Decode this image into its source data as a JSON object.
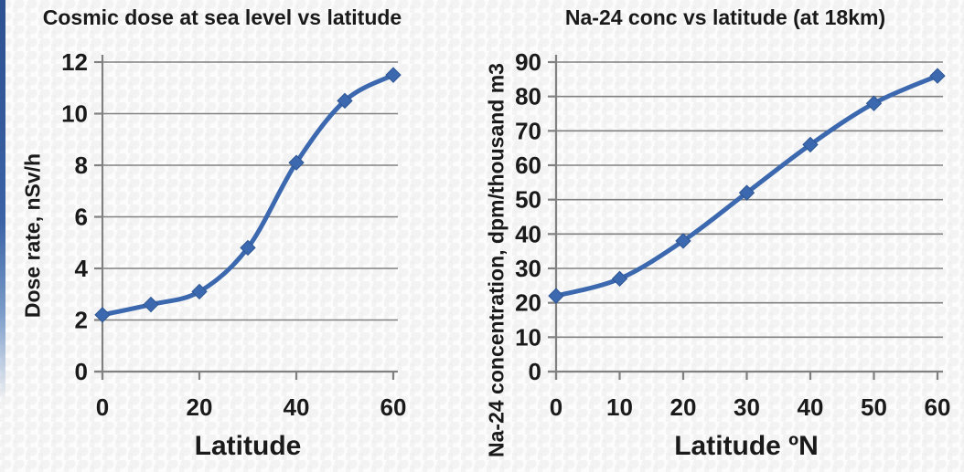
{
  "page": {
    "accent_strip_color": "#2d5191",
    "text_color": "#1a1a1a",
    "grid_color": "#808080",
    "line_color": "#3b68ae",
    "marker_edge_color": "#2f5795"
  },
  "chart_data": [
    {
      "type": "line",
      "title": "Cosmic dose at sea level vs latitude",
      "xlabel": "Latitude",
      "ylabel": "Dose rate, nSv/h",
      "x": [
        0,
        10,
        20,
        30,
        40,
        50,
        60
      ],
      "series": [
        {
          "name": "Dose rate",
          "values": [
            2.2,
            2.6,
            3.1,
            4.8,
            8.1,
            10.5,
            11.5
          ]
        }
      ],
      "xlim": [
        0,
        60
      ],
      "ylim": [
        0,
        12
      ],
      "xticks": [
        0,
        20,
        40,
        60
      ],
      "yticks": [
        0,
        2,
        4,
        6,
        8,
        10,
        12
      ],
      "grid": "horizontal",
      "legend": "none",
      "marker": "diamond",
      "line_color": "#3b68ae"
    },
    {
      "type": "line",
      "title": "Na-24 conc vs latitude (at 18km)",
      "xlabel": "Latitude ºN",
      "ylabel": "Na-24 concentration, dpm/thousand m3",
      "x": [
        0,
        10,
        20,
        30,
        40,
        50,
        60
      ],
      "series": [
        {
          "name": "Na-24 concentration",
          "values": [
            22,
            27,
            38,
            52,
            66,
            78,
            86
          ]
        }
      ],
      "xlim": [
        0,
        60
      ],
      "ylim": [
        0,
        90
      ],
      "xticks": [
        0,
        10,
        20,
        30,
        40,
        50,
        60
      ],
      "yticks": [
        0,
        10,
        20,
        30,
        40,
        50,
        60,
        70,
        80,
        90
      ],
      "grid": "horizontal",
      "legend": "none",
      "marker": "diamond",
      "line_color": "#3b68ae"
    }
  ]
}
